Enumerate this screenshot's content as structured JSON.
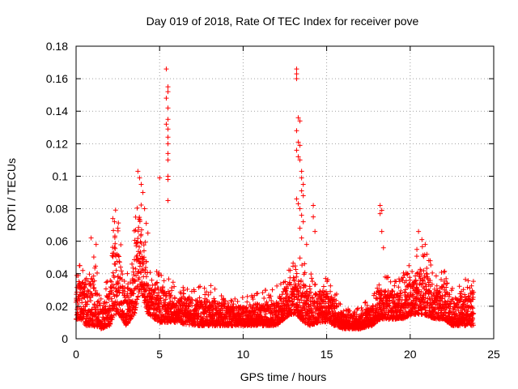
{
  "chart_data": {
    "type": "scatter",
    "title": "Day 019 of 2018, Rate Of TEC Index for receiver pove",
    "xlabel": "GPS time / hours",
    "ylabel": "ROTI / TECUs",
    "xlim": [
      0,
      25
    ],
    "ylim": [
      0,
      0.18
    ],
    "x_ticks": [
      "0",
      "5",
      "10",
      "15",
      "20",
      "25"
    ],
    "y_ticks": [
      "0",
      "0.02",
      "0.04",
      "0.06",
      "0.08",
      "0.1",
      "0.12",
      "0.14",
      "0.16",
      "0.18"
    ],
    "grid": true,
    "marker": "+",
    "colors": {
      "series": "#ff0000",
      "grid": "#a0a0a0",
      "axis": "#000000"
    },
    "series": [
      {
        "name": "ROTI",
        "envelope": [
          [
            0.0,
            0.012,
            0.03
          ],
          [
            0.3,
            0.012,
            0.04
          ],
          [
            0.6,
            0.008,
            0.03
          ],
          [
            1.0,
            0.008,
            0.04
          ],
          [
            1.5,
            0.006,
            0.02
          ],
          [
            2.0,
            0.008,
            0.03
          ],
          [
            2.3,
            0.015,
            0.065
          ],
          [
            2.6,
            0.015,
            0.05
          ],
          [
            3.0,
            0.008,
            0.03
          ],
          [
            3.5,
            0.015,
            0.05
          ],
          [
            3.8,
            0.03,
            0.08
          ],
          [
            4.0,
            0.025,
            0.06
          ],
          [
            4.3,
            0.015,
            0.04
          ],
          [
            5.0,
            0.01,
            0.03
          ],
          [
            5.5,
            0.01,
            0.03
          ],
          [
            6.0,
            0.01,
            0.025
          ],
          [
            7.0,
            0.008,
            0.025
          ],
          [
            8.0,
            0.008,
            0.025
          ],
          [
            9.0,
            0.008,
            0.02
          ],
          [
            10.0,
            0.008,
            0.02
          ],
          [
            11.0,
            0.008,
            0.022
          ],
          [
            12.0,
            0.008,
            0.025
          ],
          [
            12.8,
            0.015,
            0.035
          ],
          [
            13.2,
            0.015,
            0.04
          ],
          [
            13.6,
            0.01,
            0.035
          ],
          [
            14.0,
            0.008,
            0.03
          ],
          [
            14.5,
            0.01,
            0.03
          ],
          [
            15.0,
            0.01,
            0.03
          ],
          [
            16.0,
            0.006,
            0.015
          ],
          [
            17.0,
            0.006,
            0.015
          ],
          [
            17.7,
            0.008,
            0.02
          ],
          [
            18.2,
            0.012,
            0.03
          ],
          [
            18.8,
            0.012,
            0.03
          ],
          [
            19.5,
            0.012,
            0.03
          ],
          [
            20.3,
            0.015,
            0.04
          ],
          [
            20.8,
            0.015,
            0.045
          ],
          [
            21.5,
            0.012,
            0.03
          ],
          [
            22.0,
            0.012,
            0.035
          ],
          [
            22.5,
            0.008,
            0.025
          ],
          [
            23.0,
            0.008,
            0.025
          ],
          [
            23.5,
            0.008,
            0.03
          ],
          [
            23.8,
            0.008,
            0.03
          ]
        ],
        "spikes": [
          [
            0.2,
            0.045
          ],
          [
            0.4,
            0.042
          ],
          [
            0.9,
            0.062
          ],
          [
            1.2,
            0.058
          ],
          [
            2.2,
            0.074
          ],
          [
            2.3,
            0.072
          ],
          [
            2.5,
            0.068
          ],
          [
            3.7,
            0.103
          ],
          [
            3.8,
            0.099
          ],
          [
            3.9,
            0.095
          ],
          [
            4.0,
            0.09
          ],
          [
            4.1,
            0.08
          ],
          [
            4.2,
            0.071
          ],
          [
            4.3,
            0.065
          ],
          [
            5.0,
            0.099
          ],
          [
            5.4,
            0.166
          ],
          [
            5.5,
            0.155
          ],
          [
            5.5,
            0.152
          ],
          [
            5.4,
            0.148
          ],
          [
            5.5,
            0.142
          ],
          [
            5.5,
            0.135
          ],
          [
            5.4,
            0.132
          ],
          [
            5.5,
            0.129
          ],
          [
            5.5,
            0.124
          ],
          [
            5.5,
            0.12
          ],
          [
            5.5,
            0.114
          ],
          [
            5.5,
            0.11
          ],
          [
            5.5,
            0.1
          ],
          [
            5.5,
            0.098
          ],
          [
            5.5,
            0.085
          ],
          [
            13.2,
            0.166
          ],
          [
            13.2,
            0.163
          ],
          [
            13.2,
            0.16
          ],
          [
            13.3,
            0.136
          ],
          [
            13.4,
            0.134
          ],
          [
            13.2,
            0.128
          ],
          [
            13.3,
            0.121
          ],
          [
            13.4,
            0.119
          ],
          [
            13.2,
            0.116
          ],
          [
            13.3,
            0.112
          ],
          [
            13.4,
            0.11
          ],
          [
            13.5,
            0.103
          ],
          [
            13.5,
            0.099
          ],
          [
            13.6,
            0.095
          ],
          [
            13.5,
            0.091
          ],
          [
            13.6,
            0.088
          ],
          [
            13.2,
            0.086
          ],
          [
            13.3,
            0.083
          ],
          [
            13.4,
            0.08
          ],
          [
            13.5,
            0.076
          ],
          [
            13.6,
            0.072
          ],
          [
            13.4,
            0.068
          ],
          [
            13.5,
            0.062
          ],
          [
            14.2,
            0.082
          ],
          [
            14.2,
            0.075
          ],
          [
            14.3,
            0.066
          ],
          [
            13.8,
            0.058
          ],
          [
            18.2,
            0.082
          ],
          [
            18.3,
            0.079
          ],
          [
            18.2,
            0.077
          ],
          [
            18.3,
            0.066
          ],
          [
            18.4,
            0.056
          ],
          [
            20.5,
            0.066
          ],
          [
            20.7,
            0.061
          ],
          [
            20.9,
            0.058
          ],
          [
            20.4,
            0.055
          ],
          [
            21.0,
            0.052
          ],
          [
            21.2,
            0.048
          ]
        ]
      }
    ]
  }
}
